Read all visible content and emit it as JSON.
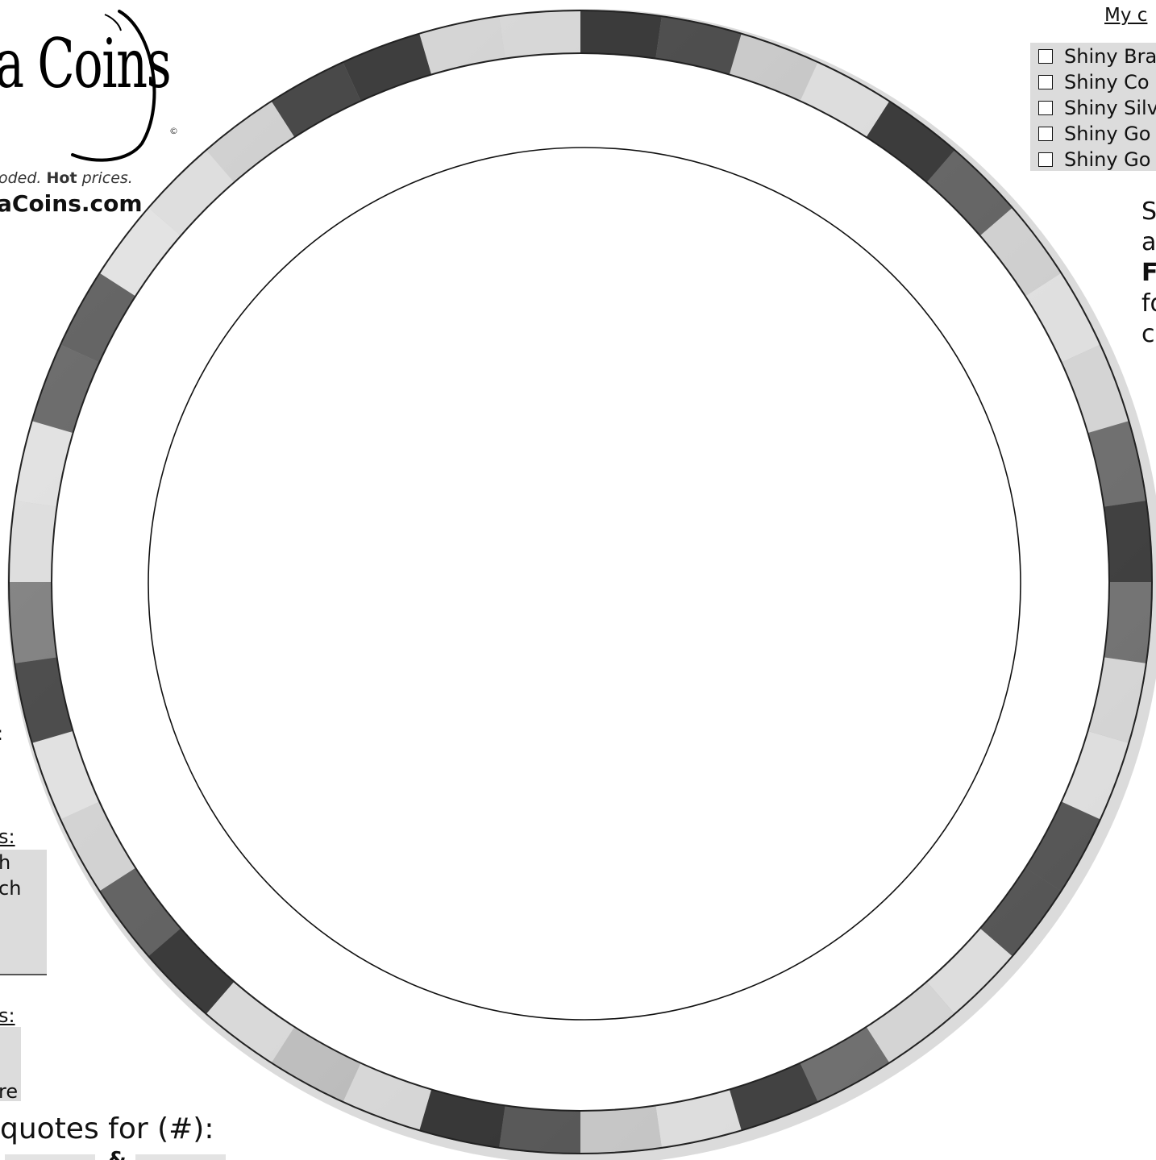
{
  "logo": {
    "text": "a Coins",
    "copyright": "©",
    "tagline_pre": "oded. ",
    "tagline_bold": "Hot",
    "tagline_post": " prices.",
    "url": "aCoins.com"
  },
  "left_form": {
    "colon": ":",
    "section1_label": "s:",
    "section1_lines": [
      "h",
      "ch"
    ],
    "section2_label": "s:",
    "section2_lines": [
      "re"
    ],
    "quotes_label": "quotes for (#):",
    "quotes_separator": "&"
  },
  "right_panel": {
    "my_label": "My c",
    "options": [
      "Shiny Bra",
      "Shiny Co",
      "Shiny Silv",
      "Shiny Go",
      "Shiny Go"
    ],
    "side_lines": [
      "Se",
      "a",
      "Fr",
      "fo",
      "c"
    ]
  },
  "colors": {
    "rim_dark": "#2b2b2b",
    "rim_light": "#e6e6e6",
    "form_gray": "#dcdcdc"
  },
  "icons": {
    "checkbox": "checkbox-unchecked-icon",
    "coin": "coin-template-icon"
  }
}
